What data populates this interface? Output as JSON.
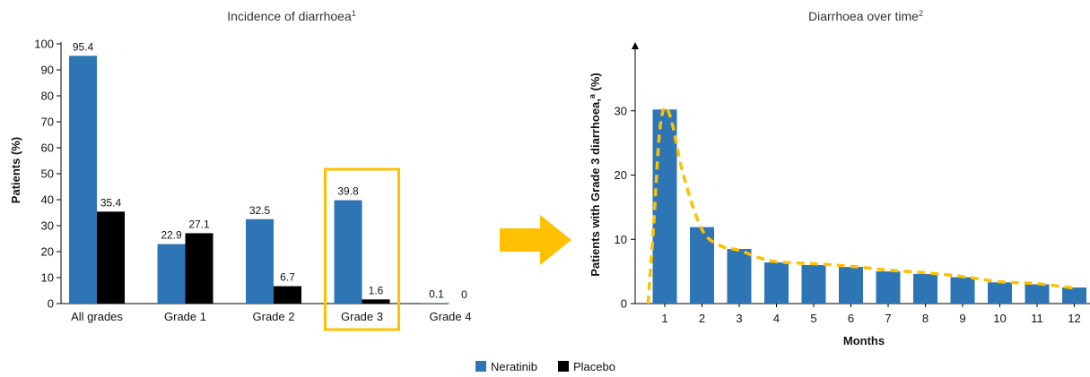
{
  "colors": {
    "neratinib": "#2e75b6",
    "placebo": "#000000",
    "highlight": "#ffc000",
    "arrow": "#ffc000",
    "curve": "#ffc000"
  },
  "legend": {
    "items": [
      {
        "label": "Neratinib",
        "color": "#2e75b6"
      },
      {
        "label": "Placebo",
        "color": "#000000"
      }
    ]
  },
  "chart_data": [
    {
      "type": "bar",
      "title": "Incidence of diarrhoea",
      "title_sup": "1",
      "ylabel": "Patients (%)",
      "xlabel": "",
      "ylim": [
        0,
        100
      ],
      "yticks": [
        0,
        10,
        20,
        30,
        40,
        50,
        60,
        70,
        80,
        90,
        100
      ],
      "categories": [
        "All grades",
        "Grade 1",
        "Grade 2",
        "Grade 3",
        "Grade 4"
      ],
      "series": [
        {
          "name": "Neratinib",
          "values": [
            95.4,
            22.9,
            32.5,
            39.8,
            0.1
          ],
          "labels": [
            "95.4",
            "22.9",
            "32.5",
            "39.8",
            "0.1"
          ]
        },
        {
          "name": "Placebo",
          "values": [
            35.4,
            27.1,
            6.7,
            1.6,
            0
          ],
          "labels": [
            "35.4",
            "27.1",
            "6.7",
            "1.6",
            "0"
          ]
        }
      ],
      "highlighted_category": "Grade 3",
      "grid": false,
      "legend_position": "bottom"
    },
    {
      "type": "bar",
      "title": "Diarrhoea over time",
      "title_sup": "2",
      "ylabel": "Patients with Grade 3 diarrhoea,",
      "ylabel_sup": "a",
      "ylabel_suffix": " (%)",
      "xlabel": "Months",
      "ylim": [
        0,
        40
      ],
      "yticks": [
        0,
        10,
        20,
        30
      ],
      "categories": [
        "1",
        "2",
        "3",
        "4",
        "5",
        "6",
        "7",
        "8",
        "9",
        "10",
        "11",
        "12"
      ],
      "series": [
        {
          "name": "Neratinib",
          "values": [
            30.2,
            11.9,
            8.5,
            6.4,
            6.0,
            5.7,
            5.0,
            4.6,
            4.1,
            3.3,
            3.0,
            2.5
          ]
        }
      ],
      "trend_line": {
        "style": "dashed",
        "x": [
          0.55,
          0.7,
          0.85,
          1.0,
          1.2,
          1.5,
          2.0,
          2.5,
          3.0,
          3.5,
          4.0,
          5.0,
          6.0,
          7.0,
          8.0,
          9.0,
          10.0,
          11.0,
          12.0
        ],
        "y": [
          0,
          12,
          26,
          30.5,
          28,
          20,
          11.5,
          9.0,
          8.3,
          7.2,
          6.5,
          6.2,
          5.8,
          5.2,
          4.8,
          4.2,
          3.4,
          3.1,
          2.4
        ]
      },
      "grid": false
    }
  ]
}
